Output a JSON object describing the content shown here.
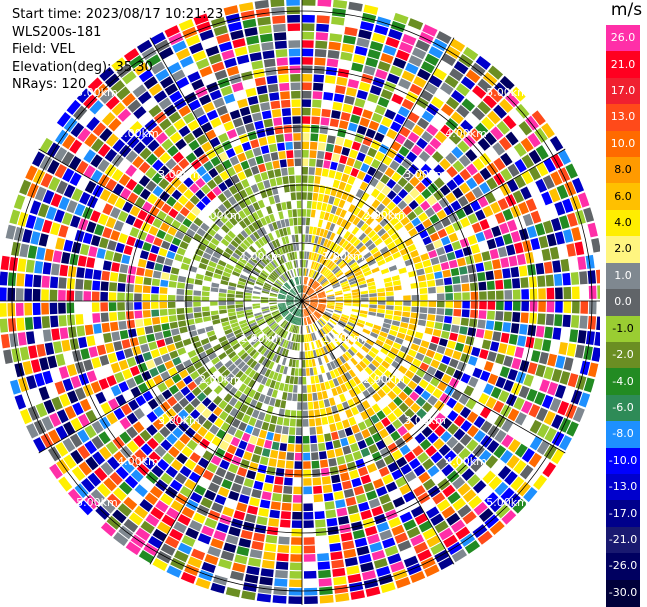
{
  "info": {
    "start_time": "Start time: 2023/08/17 10:21:23",
    "instrument": "WLS200s-181",
    "field": "Field: VEL",
    "elevation": "Elevation(deg): 35.30",
    "nrays": "NRays: 120"
  },
  "colorbar": {
    "unit": "m/s",
    "entries": [
      {
        "label": "26.0",
        "color": "#ff2fa8"
      },
      {
        "label": "21.0",
        "color": "#ff0020"
      },
      {
        "label": "17.0",
        "color": "#f02030"
      },
      {
        "label": "13.0",
        "color": "#ff4a1a"
      },
      {
        "label": "10.0",
        "color": "#ff6a00"
      },
      {
        "label": "8.0",
        "color": "#ff9a00"
      },
      {
        "label": "6.0",
        "color": "#ffc000"
      },
      {
        "label": "4.0",
        "color": "#ffee00"
      },
      {
        "label": "2.0",
        "color": "#fff580"
      },
      {
        "label": "1.0",
        "color": "#7f8890"
      },
      {
        "label": "0.0",
        "color": "#606468"
      },
      {
        "label": "-1.0",
        "color": "#9acd32"
      },
      {
        "label": "-2.0",
        "color": "#6b8e23"
      },
      {
        "label": "-4.0",
        "color": "#228b22"
      },
      {
        "label": "-6.0",
        "color": "#2e8b57"
      },
      {
        "label": "-8.0",
        "color": "#1e90ff"
      },
      {
        "label": "-10.0",
        "color": "#0000ff"
      },
      {
        "label": "-13.0",
        "color": "#0000cd"
      },
      {
        "label": "-17.0",
        "color": "#00008b"
      },
      {
        "label": "-21.0",
        "color": "#191970"
      },
      {
        "label": "-26.0",
        "color": "#000060"
      },
      {
        "label": "-30.0",
        "color": "#00003a"
      }
    ]
  },
  "range_rings": {
    "labels": [
      "1.00km",
      "2.00km",
      "3.00km",
      "4.00km",
      "5.00km"
    ]
  },
  "palette": {
    "inner": [
      "#9acd32",
      "#6b8e23",
      "#228b22",
      "#2e8b57",
      "#7f8890",
      "#606468",
      "#ffee00",
      "#fff580",
      "#ff9a00",
      "#ffc000"
    ],
    "outer": [
      "#ff2fa8",
      "#ff0020",
      "#ff6a00",
      "#ffee00",
      "#0000ff",
      "#00008b",
      "#228b22",
      "#6b8e23",
      "#9acd32",
      "#1e90ff",
      "#606468",
      "#7f8890",
      "#ffc000",
      "#ff4a1a",
      "#000060",
      "#0000cd"
    ]
  }
}
